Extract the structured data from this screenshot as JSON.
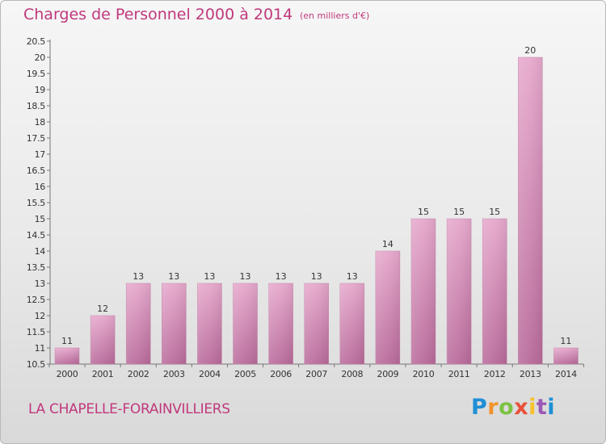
{
  "title": "Charges de Personnel 2000 à 2014",
  "subtitle": "(en milliers d'€)",
  "commune": "LA CHAPELLE-FORAINVILLIERS",
  "logo": {
    "letters": [
      "P",
      "r",
      "o",
      "x",
      "i",
      "t",
      "i"
    ]
  },
  "colors": {
    "bar": "#d98cb8",
    "accent": "#c0387c"
  },
  "chart_data": {
    "type": "bar",
    "title": "Charges de Personnel 2000 à 2014",
    "subtitle": "(en milliers d'€)",
    "categories": [
      "2000",
      "2001",
      "2002",
      "2003",
      "2004",
      "2005",
      "2006",
      "2007",
      "2008",
      "2009",
      "2010",
      "2011",
      "2012",
      "2013",
      "2014"
    ],
    "values": [
      11,
      12,
      13,
      13,
      13,
      13,
      13,
      13,
      13,
      14,
      15,
      15,
      15,
      20,
      11
    ],
    "labels": [
      "11",
      "12",
      "13",
      "13",
      "13",
      "13",
      "13",
      "13",
      "13",
      "14",
      "15",
      "15",
      "15",
      "20",
      "11"
    ],
    "ylim": [
      10.5,
      20.5
    ],
    "yticks": [
      "10.5",
      "11",
      "11.5",
      "12",
      "12.5",
      "13",
      "13.5",
      "14",
      "14.5",
      "15",
      "15.5",
      "16",
      "16.5",
      "17",
      "17.5",
      "18",
      "18.5",
      "19",
      "19.5",
      "20",
      "20.5"
    ],
    "grid": false,
    "legend": "none"
  }
}
